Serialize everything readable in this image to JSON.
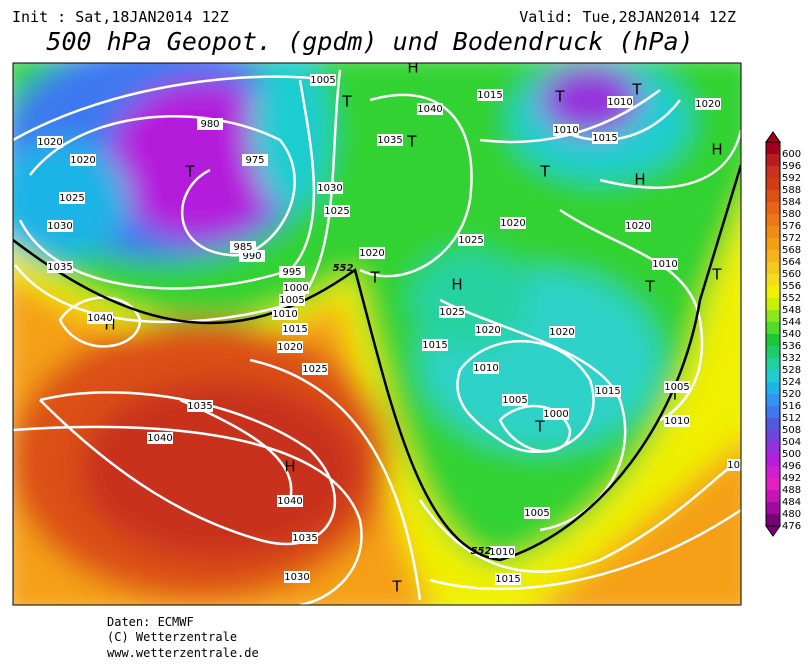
{
  "header": {
    "init": "Init : Sat,18JAN2014 12Z",
    "valid": "Valid: Tue,28JAN2014 12Z",
    "title": "500 hPa Geopot. (gpdm) und Bodendruck (hPa)"
  },
  "footer": {
    "source": "Daten: ECMWF",
    "copyright": "(C) Wetterzentrale",
    "url": "www.wetterzentrale.de"
  },
  "colorbar": {
    "levels": [
      600,
      596,
      592,
      588,
      584,
      580,
      576,
      572,
      568,
      564,
      560,
      556,
      552,
      548,
      544,
      540,
      536,
      532,
      528,
      524,
      520,
      516,
      512,
      508,
      504,
      500,
      496,
      492,
      488,
      484,
      480,
      476
    ],
    "colors": [
      "#a0001e",
      "#b41e1e",
      "#c8321e",
      "#d23c14",
      "#dc5014",
      "#e66414",
      "#eb7814",
      "#f08c14",
      "#f5a014",
      "#f5b41e",
      "#f5c81e",
      "#f5dc1e",
      "#f0f000",
      "#c8f000",
      "#8ce61e",
      "#50dc28",
      "#1ec832",
      "#1ecd6e",
      "#1ed2a0",
      "#1ecdd2",
      "#1eb4e6",
      "#3296f0",
      "#3c78f0",
      "#505adc",
      "#6e46dc",
      "#9632dc",
      "#b41edc",
      "#d21ed2",
      "#e61ebe",
      "#c814b4",
      "#a00aa0",
      "#780078"
    ]
  },
  "map": {
    "pressure_centers": [
      "H",
      "H",
      "H",
      "H",
      "H",
      "H",
      "T",
      "T",
      "T",
      "T",
      "T",
      "T",
      "T",
      "T",
      "T",
      "T",
      "T",
      "T"
    ],
    "isobar_labels": [
      1020,
      1020,
      1025,
      1030,
      1035,
      1040,
      1035,
      1040,
      1040,
      1035,
      1030,
      1025,
      1020,
      1015,
      1010,
      1005,
      1000,
      995,
      990,
      985,
      980,
      975,
      1005,
      1010,
      1015,
      1010,
      1015,
      1040,
      1035,
      1030,
      1025,
      1020,
      1025,
      1020,
      1015,
      1010,
      1005,
      1000,
      1005,
      1010,
      1015,
      1020,
      1020,
      1010,
      1020,
      1015,
      1010,
      1015,
      1005,
      1025,
      1020
    ],
    "contour_labels": [
      552,
      552
    ]
  }
}
